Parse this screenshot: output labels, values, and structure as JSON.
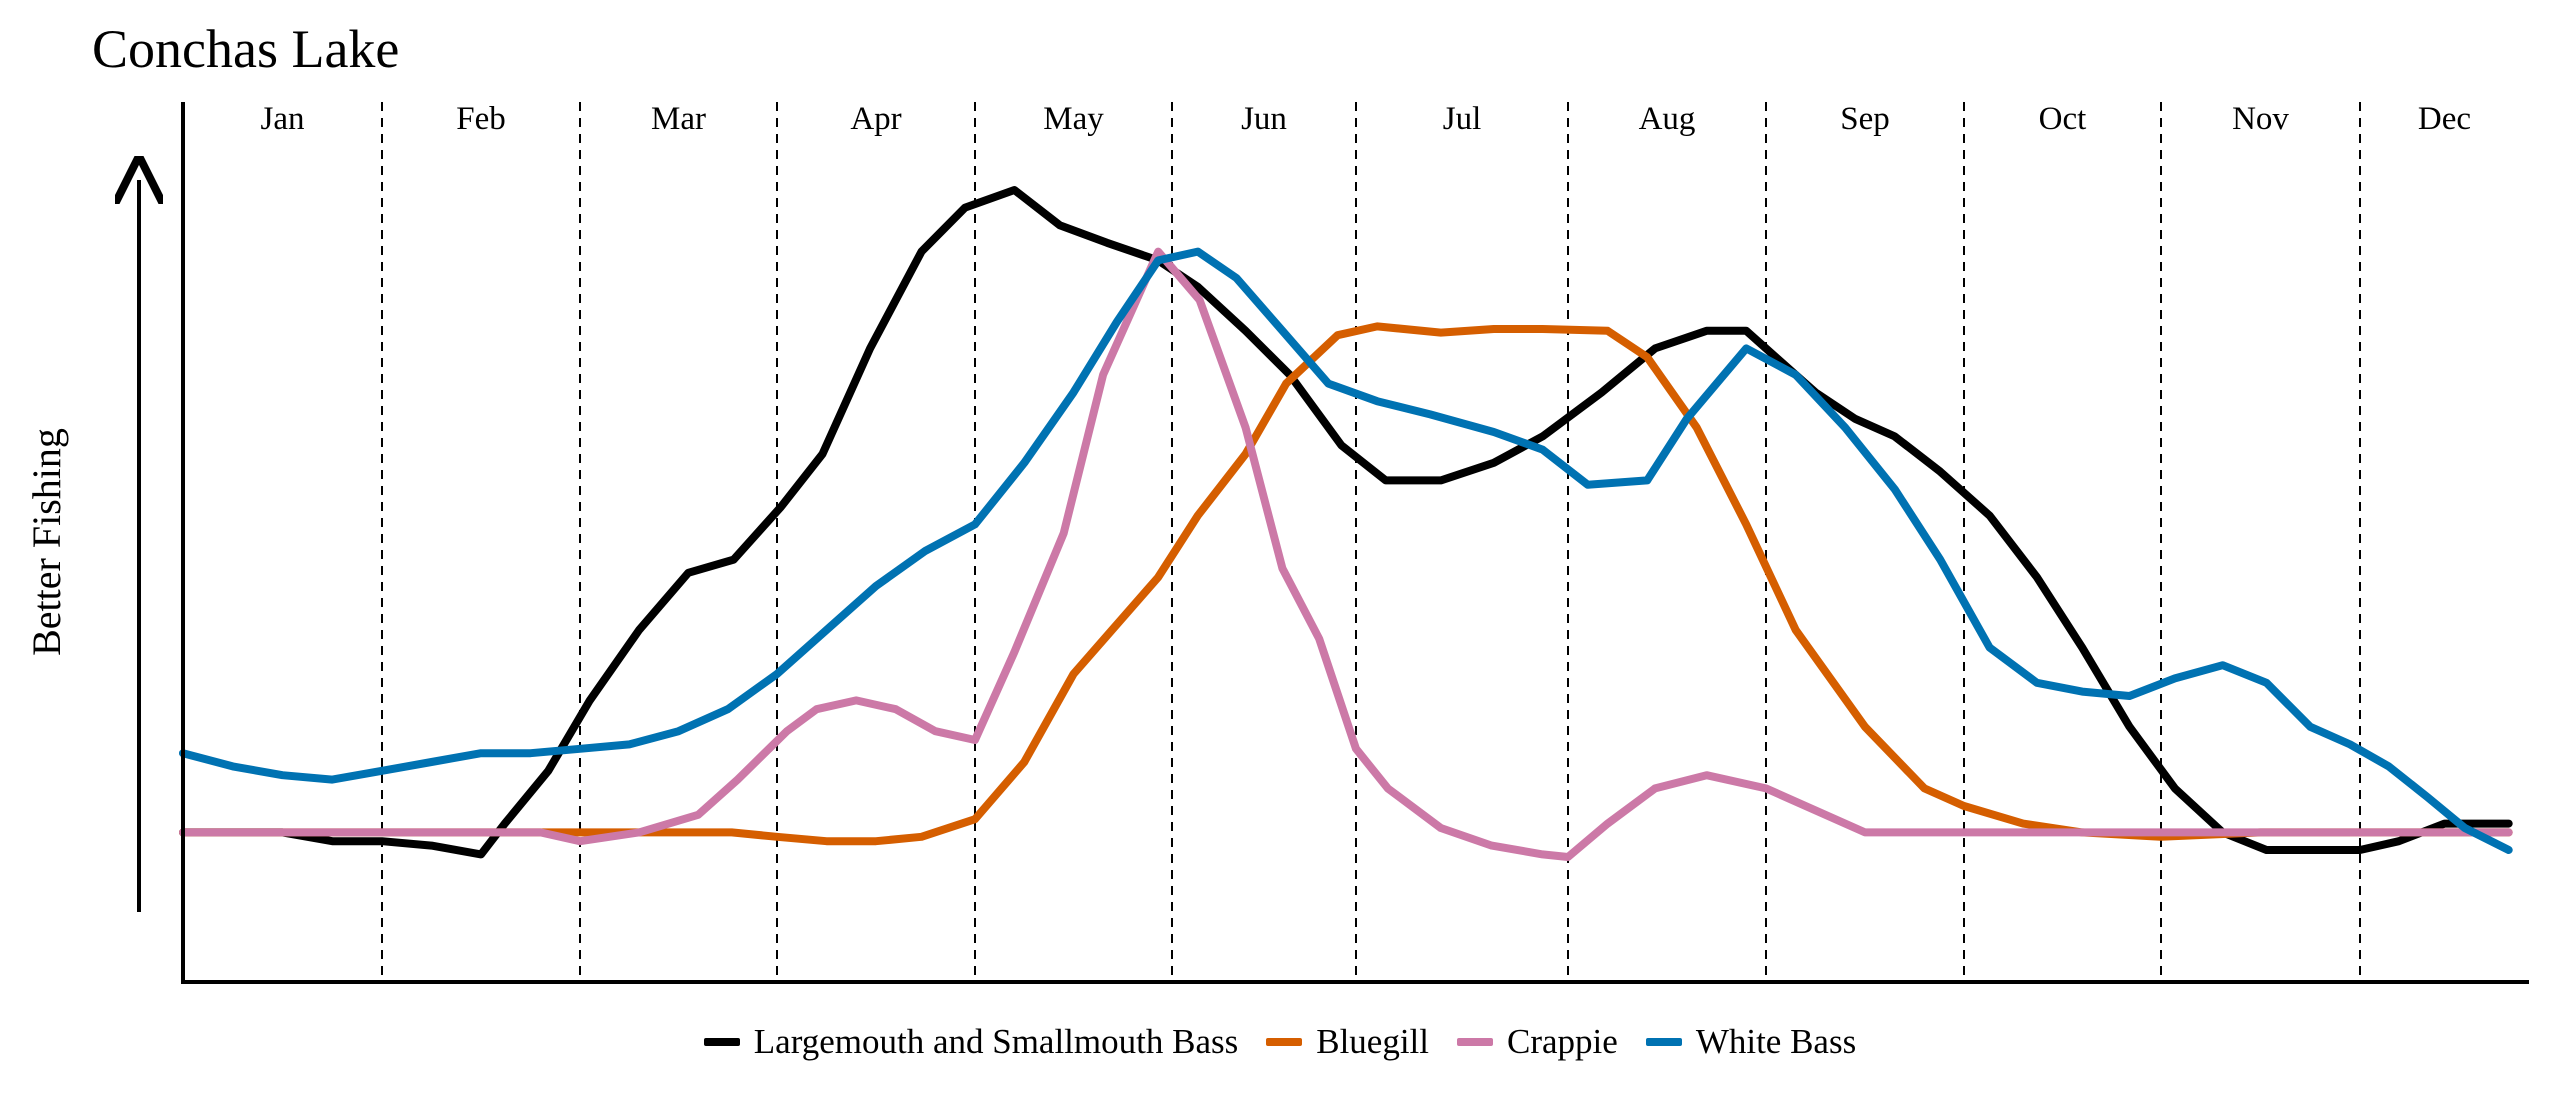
{
  "chart_data": {
    "type": "line",
    "title": "Conchas Lake",
    "ylabel": "Better Fishing",
    "xlabel": "",
    "months": [
      "Jan",
      "Feb",
      "Mar",
      "Apr",
      "May",
      "Jun",
      "Jul",
      "Aug",
      "Sep",
      "Oct",
      "Nov",
      "Dec"
    ],
    "xlim": [
      0,
      12
    ],
    "ylim": [
      0,
      100
    ],
    "grid": "dashed month dividers",
    "legend_position": "bottom-center",
    "series": [
      {
        "name": "Largemouth and Smallmouth Bass",
        "color": "#000000",
        "x": [
          0,
          0.5,
          0.75,
          1.0,
          1.25,
          1.5,
          1.62,
          1.84,
          2.05,
          2.3,
          2.55,
          2.78,
          3.02,
          3.23,
          3.47,
          3.73,
          3.95,
          4.2,
          4.43,
          4.67,
          4.93,
          5.14,
          5.4,
          5.64,
          5.92,
          6.14,
          6.4,
          6.65,
          6.88,
          7.17,
          7.44,
          7.7,
          7.9,
          8.05,
          8.25,
          8.45,
          8.65,
          8.88,
          9.13,
          9.37,
          9.6,
          9.84,
          10.07,
          10.31,
          10.53,
          10.75,
          11.0,
          11.23,
          11.5,
          11.75,
          11.88
        ],
        "y": [
          17,
          17,
          16,
          16,
          15.5,
          14.5,
          18,
          24,
          32,
          40,
          46.5,
          48,
          54,
          60,
          72,
          83,
          88,
          90,
          86,
          84,
          82,
          79,
          74,
          69,
          61,
          57,
          57,
          59,
          62,
          67,
          72,
          74,
          74,
          71,
          67,
          64,
          62,
          58,
          53,
          46,
          38,
          29,
          22,
          17,
          15,
          15,
          15,
          16,
          18,
          18,
          18
        ]
      },
      {
        "name": "Bluegill",
        "color": "#D55E00",
        "x": [
          0,
          1.0,
          2.0,
          2.77,
          3.0,
          3.25,
          3.5,
          3.73,
          4.0,
          4.25,
          4.5,
          4.93,
          5.14,
          5.4,
          5.62,
          5.9,
          6.1,
          6.4,
          6.65,
          6.88,
          7.2,
          7.4,
          7.65,
          7.9,
          8.15,
          8.5,
          8.8,
          9.0,
          9.3,
          9.6,
          10.0,
          10.5,
          11.0,
          11.5,
          11.88
        ],
        "y": [
          17,
          17,
          17,
          17,
          16.5,
          16,
          16,
          16.5,
          18.5,
          25,
          35,
          46,
          53,
          60,
          68,
          73.5,
          74.5,
          73.8,
          74.2,
          74.2,
          74,
          71,
          63,
          52,
          40,
          29,
          22,
          20,
          18,
          17,
          16.5,
          17,
          17,
          17,
          17
        ]
      },
      {
        "name": "Crappie",
        "color": "#CC79A7",
        "x": [
          0,
          1.0,
          1.5,
          1.8,
          2.0,
          2.3,
          2.6,
          2.8,
          3.05,
          3.2,
          3.4,
          3.6,
          3.8,
          4.0,
          4.2,
          4.45,
          4.65,
          4.93,
          5.15,
          5.4,
          5.6,
          5.8,
          6.0,
          6.15,
          6.4,
          6.64,
          6.88,
          7.0,
          7.2,
          7.44,
          7.7,
          8.0,
          8.5,
          9.0,
          9.5,
          10.0,
          10.5,
          11.0,
          11.5,
          11.88
        ],
        "y": [
          17,
          17,
          17,
          17,
          16,
          17,
          19,
          23,
          28.5,
          31,
          32,
          31,
          28.5,
          27.5,
          37.5,
          51,
          69,
          83,
          77.5,
          63,
          47,
          39,
          26.5,
          22,
          17.5,
          15.5,
          14.5,
          14.2,
          18,
          22,
          23.5,
          22,
          17,
          17,
          17,
          17,
          17,
          17,
          17,
          17
        ]
      },
      {
        "name": "White Bass",
        "color": "#0072B2",
        "x": [
          0,
          0.25,
          0.5,
          0.75,
          1.0,
          1.25,
          1.5,
          1.75,
          2.0,
          2.25,
          2.5,
          2.75,
          3.0,
          3.25,
          3.5,
          3.75,
          4.0,
          4.25,
          4.5,
          4.72,
          4.93,
          5.14,
          5.35,
          5.6,
          5.85,
          6.1,
          6.35,
          6.65,
          6.88,
          7.1,
          7.4,
          7.6,
          7.9,
          8.15,
          8.4,
          8.65,
          8.88,
          9.13,
          9.37,
          9.6,
          9.84,
          10.07,
          10.31,
          10.53,
          10.75,
          10.95,
          11.17,
          11.4,
          11.62,
          11.88
        ],
        "y": [
          26,
          24.5,
          23.5,
          23,
          24,
          25,
          26,
          26,
          26.5,
          27,
          28.5,
          31,
          35,
          40,
          45,
          49,
          52,
          59,
          67,
          75,
          82,
          83,
          80,
          74,
          68,
          66,
          64.5,
          62.5,
          60.5,
          56.5,
          57,
          64,
          72,
          69,
          63,
          56,
          48,
          38,
          34,
          33,
          32.5,
          34.5,
          36,
          34,
          29,
          27,
          24.5,
          21,
          17.5,
          15
        ]
      }
    ]
  }
}
